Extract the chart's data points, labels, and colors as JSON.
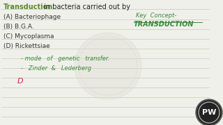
{
  "bg_color": "#f0f0eb",
  "line_color": "#c8c8b8",
  "title_green": "#5a8a2a",
  "title_black": "#222222",
  "option_color": "#333333",
  "handwriting_green": "#3a8a3a",
  "answer_red": "#cc2244",
  "keyconcept_green": "#3a8a3a",
  "title_text_green": "Transduction",
  "title_text_black": " in bacteria carried out by",
  "options": [
    "(A) Bacteriophage",
    "(B) B.G.A.",
    "(C) Mycoplasma",
    "(D) Rickettsiae"
  ],
  "note_line1": "- mode   of   genetic   transfer.",
  "note_line2": "-   Zinder  &   Lederberg",
  "answer": "D",
  "key_concept_line1": "Key  Concept-",
  "key_concept_line2": "TRANSDUCTION",
  "pw_text": "PW",
  "pw_bg": "#222222",
  "pw_color": "#ffffff",
  "globe_color": "#d8d8cc"
}
